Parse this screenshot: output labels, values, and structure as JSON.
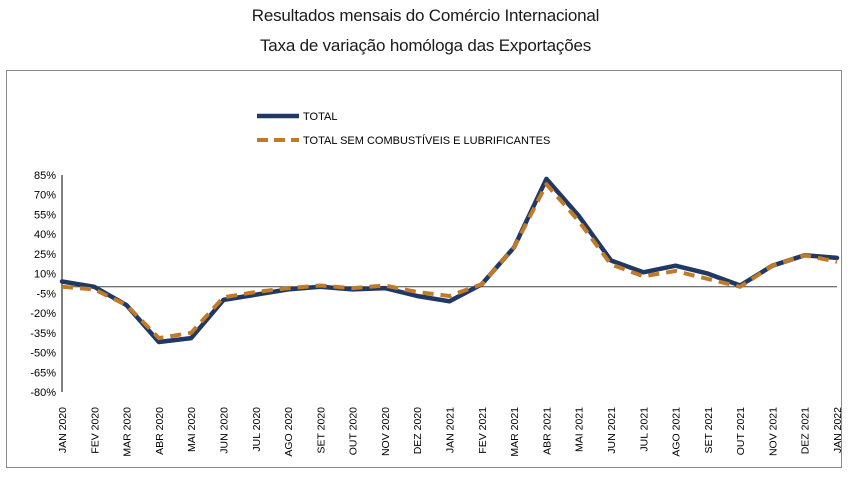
{
  "header": {
    "title_line1": "Resultados mensais do Comércio Internacional",
    "title_line2": "Taxa de variação homóloga das Exportações"
  },
  "chart_data": {
    "type": "line",
    "title": "Resultados mensais do Comércio Internacional — Taxa de variação homóloga das Exportações",
    "categories": [
      "JAN 2020",
      "FEV 2020",
      "MAR 2020",
      "ABR 2020",
      "MAI 2020",
      "JUN 2020",
      "JUL 2020",
      "AGO 2020",
      "SET 2020",
      "OUT 2020",
      "NOV 2020",
      "DEZ 2020",
      "JAN 2021",
      "FEV 2021",
      "MAR 2021",
      "ABR 2021",
      "MAI 2021",
      "JUN 2021",
      "JUL 2021",
      "AGO 2021",
      "SET 2021",
      "OUT 2021",
      "NOV 2021",
      "DEZ 2021",
      "JAN 2022"
    ],
    "y_ticks": [
      "85%",
      "70%",
      "55%",
      "40%",
      "25%",
      "10%",
      "-5%",
      "-20%",
      "-35%",
      "-50%",
      "-65%",
      "-80%"
    ],
    "ylim": [
      -80,
      85
    ],
    "ytick_step": 15,
    "zero_line": 0,
    "legend_placement": "top-left",
    "series": [
      {
        "name": "TOTAL",
        "color": "#1F3864",
        "style": "solid",
        "values": [
          4,
          0,
          -14,
          -42,
          -39,
          -10,
          -6,
          -2,
          0,
          -2,
          -1,
          -7,
          -11,
          2,
          30,
          82,
          54,
          20,
          11,
          16,
          10,
          1,
          16,
          24,
          22
        ]
      },
      {
        "name": "TOTAL SEM COMBUSTÍVEIS E LUBRIFICANTES",
        "color": "#C07A28",
        "style": "dashed",
        "values": [
          0,
          -2,
          -14,
          -39,
          -35,
          -8,
          -4,
          -1,
          1,
          -1,
          1,
          -4,
          -7,
          2,
          30,
          78,
          50,
          17,
          8,
          12,
          6,
          0,
          16,
          24,
          19
        ]
      }
    ]
  }
}
